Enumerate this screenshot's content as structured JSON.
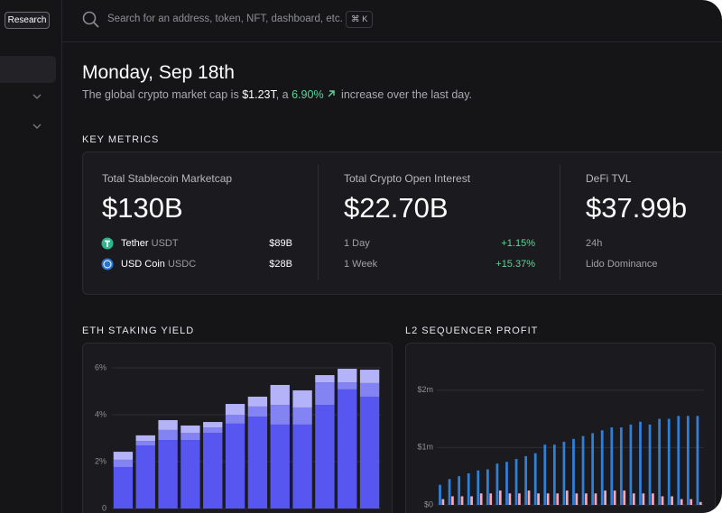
{
  "sidebar": {
    "button": "Research"
  },
  "search": {
    "placeholder": "Search for an address, token, NFT, dashboard, etc.",
    "shortcut": "⌘ K"
  },
  "header": {
    "title": "Monday, Sep 18th",
    "subtitle": {
      "lead": "The global crypto market cap is",
      "cap": "$1.23T",
      "mid": ", a",
      "change": "6.90%",
      "tail": "increase over the last day."
    }
  },
  "key_metrics": {
    "heading": "KEY METRICS",
    "cards": [
      {
        "label": "Total Stablecoin Marketcap",
        "value": "$130B",
        "rows": [
          {
            "name": "Tether",
            "ticker": "USDT",
            "amount": "$89B"
          },
          {
            "name": "USD Coin",
            "ticker": "USDC",
            "amount": "$28B"
          }
        ]
      },
      {
        "label": "Total Crypto Open Interest",
        "value": "$22.70B",
        "rows": [
          {
            "name": "1 Day",
            "amount": "+1.15%"
          },
          {
            "name": "1 Week",
            "amount": "+15.37%"
          }
        ]
      },
      {
        "label": "DeFi TVL",
        "value": "$37.99b",
        "rows": [
          {
            "name": "24h"
          },
          {
            "name": "Lido Dominance"
          }
        ]
      }
    ]
  },
  "charts": [
    {
      "type": "stacked_bar",
      "title": "ETH STAKING YIELD",
      "ylim": [
        0,
        6
      ],
      "yticks": [
        0,
        {
          "value": 2,
          "label": "2%"
        },
        {
          "value": 4,
          "label": "4%"
        },
        {
          "value": 6,
          "label": "6%"
        }
      ],
      "grid": true,
      "series": [
        {
          "color": "#5856f0",
          "values": [
            1.77,
            2.69,
            2.92,
            2.92,
            3.23,
            3.62,
            3.92,
            3.58,
            3.58,
            4.42,
            5.08,
            4.77
          ]
        },
        {
          "color": "#8483f3",
          "values": [
            0.31,
            0.19,
            0.43,
            0.31,
            0.23,
            0.38,
            0.43,
            0.84,
            0.73,
            0.96,
            0.3,
            0.58
          ]
        },
        {
          "color": "#b4b3f9",
          "values": [
            0.34,
            0.24,
            0.42,
            0.31,
            0.23,
            0.46,
            0.42,
            0.85,
            0.73,
            0.31,
            0.58,
            0.57
          ]
        }
      ]
    },
    {
      "type": "grouped_bar",
      "title": "L2 SEQUENCER PROFIT",
      "ylim": [
        0,
        2.2
      ],
      "yticks": [
        {
          "value": 0,
          "label": "$0"
        },
        {
          "value": 1,
          "label": "$1m"
        },
        {
          "value": 2,
          "label": "$2m"
        }
      ],
      "grid": true,
      "series": [
        {
          "color": "#2f80d8",
          "values": [
            0.35,
            0.45,
            0.5,
            0.55,
            0.6,
            0.62,
            0.72,
            0.75,
            0.8,
            0.85,
            0.9,
            1.05,
            1.05,
            1.1,
            1.15,
            1.2,
            1.25,
            1.3,
            1.35,
            1.35,
            1.4,
            1.45,
            1.4,
            1.5,
            1.5,
            1.55,
            1.55,
            1.55
          ]
        },
        {
          "color": "#f2a9b9",
          "values": [
            0.1,
            0.15,
            0.15,
            0.15,
            0.2,
            0.2,
            0.25,
            0.2,
            0.2,
            0.25,
            0.2,
            0.2,
            0.2,
            0.25,
            0.2,
            0.2,
            0.2,
            0.25,
            0.25,
            0.25,
            0.2,
            0.2,
            0.2,
            0.15,
            0.15,
            0.1,
            0.1,
            0.05
          ]
        }
      ]
    }
  ]
}
